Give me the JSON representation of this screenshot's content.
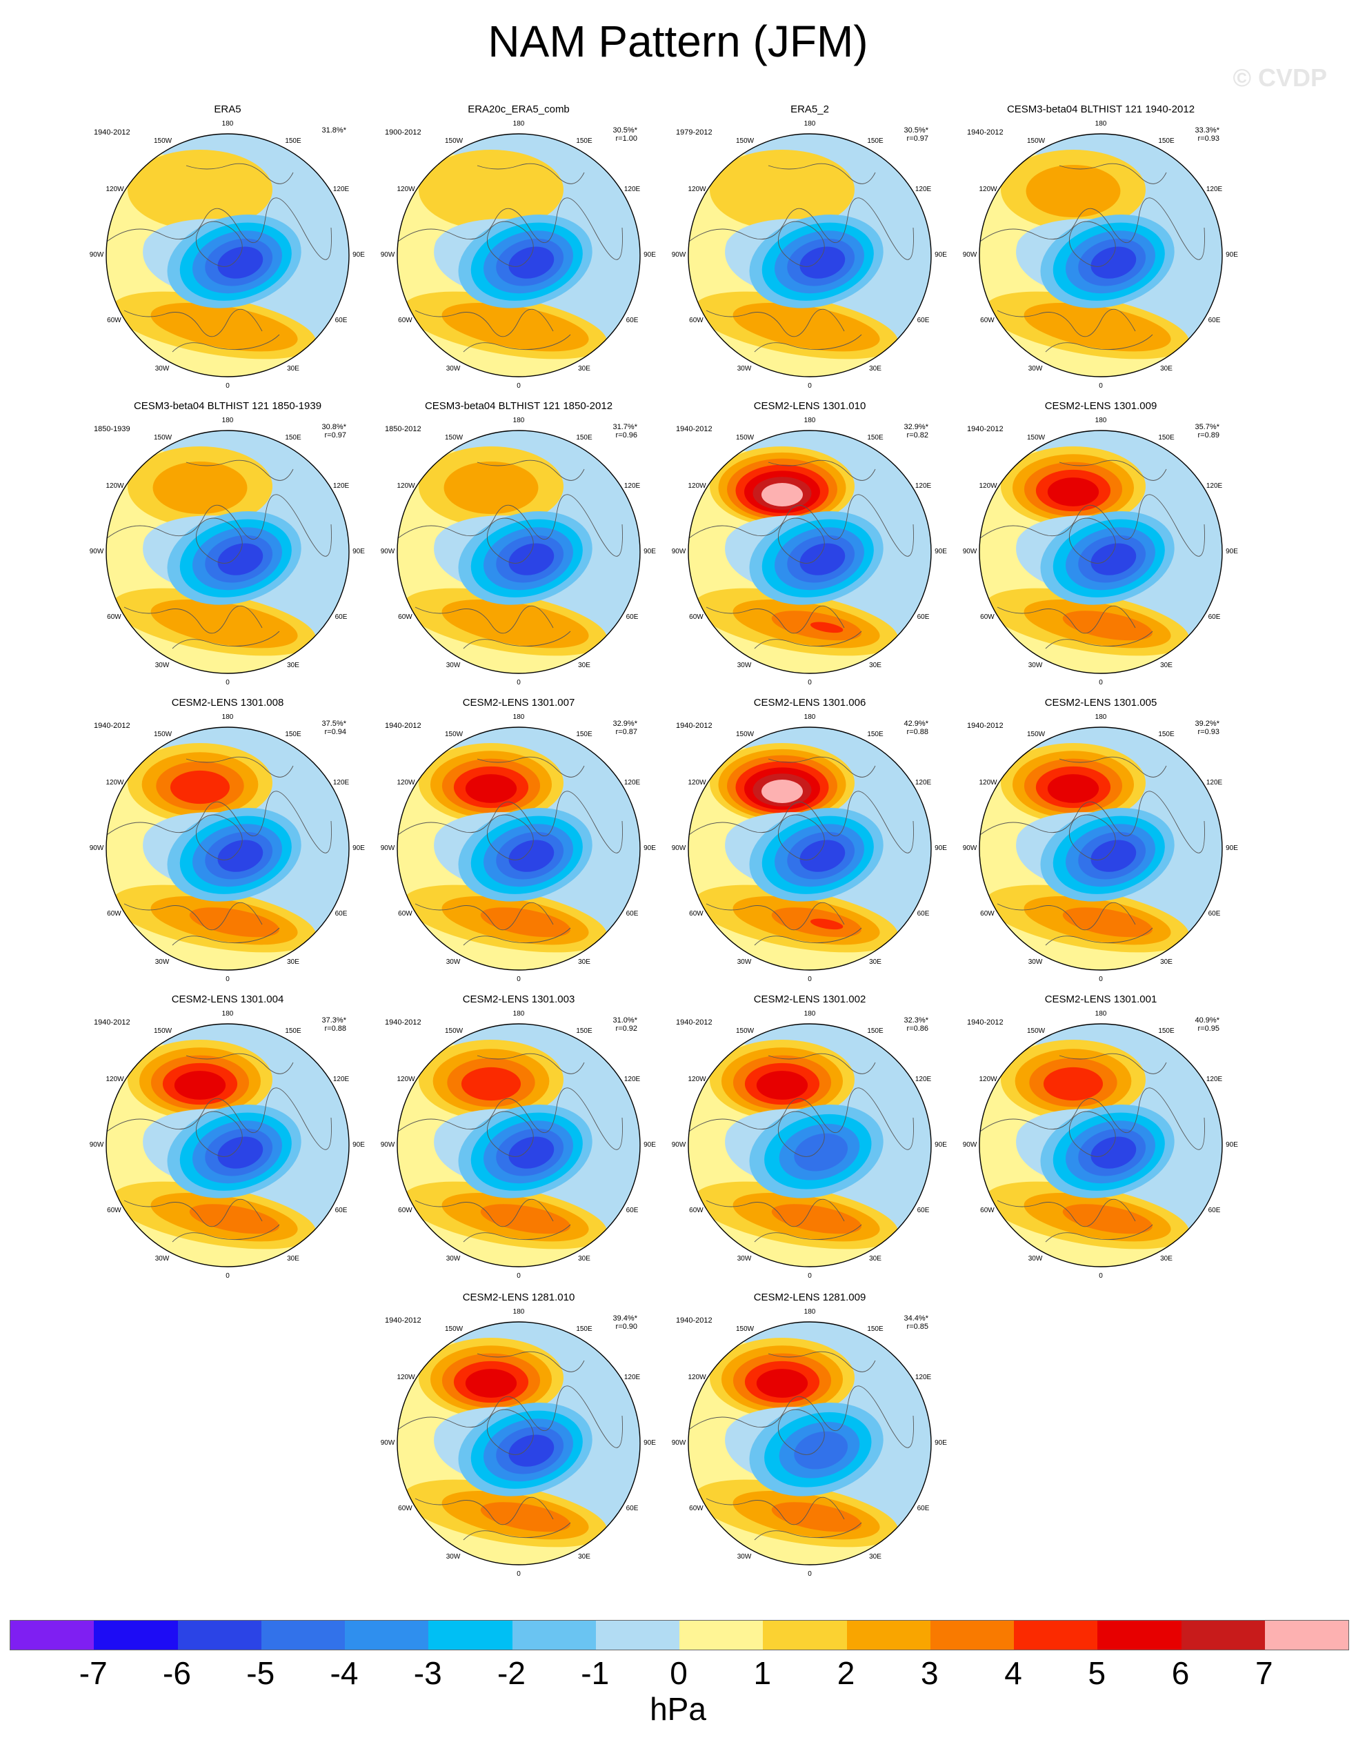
{
  "figure": {
    "title": "NAM Pattern (JFM)",
    "watermark": "© CVDP",
    "units": "hPa",
    "longitude_labels": [
      "180",
      "150E",
      "120E",
      "90E",
      "60E",
      "30E",
      "0",
      "30W",
      "60W",
      "90W",
      "120W",
      "150W"
    ]
  },
  "colorbar": {
    "ticks": [
      "-7",
      "-6",
      "-5",
      "-4",
      "-3",
      "-2",
      "-1",
      "0",
      "1",
      "2",
      "3",
      "4",
      "5",
      "6",
      "7"
    ],
    "colors": [
      "#7f1ff2",
      "#1d0cf5",
      "#2b44e6",
      "#3272ea",
      "#2f8fee",
      "#00bff4",
      "#6ac4f2",
      "#b2dcf3",
      "#fff595",
      "#fbd232",
      "#f9a500",
      "#f97a00",
      "#fb2a00",
      "#e70000",
      "#c81b1b",
      "#fdb1b1"
    ]
  },
  "panels": [
    {
      "title": "ERA5",
      "years": "1940-2012",
      "pct": "31.8%*",
      "r": "",
      "ridge": 1.6,
      "trough": 5.2
    },
    {
      "title": "ERA20c_ERA5_comb",
      "years": "1900-2012",
      "pct": "30.5%*",
      "r": "r=1.00",
      "ridge": 1.5,
      "trough": 5.0
    },
    {
      "title": "ERA5_2",
      "years": "1979-2012",
      "pct": "30.5%*",
      "r": "r=0.97",
      "ridge": 1.7,
      "trough": 5.1
    },
    {
      "title": "CESM3-beta04 BLTHIST 121 1940-2012",
      "years": "1940-2012",
      "pct": "33.3%*",
      "r": "r=0.93",
      "ridge": 2.8,
      "trough": 5.6
    },
    {
      "title": "CESM3-beta04 BLTHIST 121 1850-1939",
      "years": "1850-1939",
      "pct": "30.8%*",
      "r": "r=0.97",
      "ridge": 2.0,
      "trough": 5.3
    },
    {
      "title": "CESM3-beta04 BLTHIST 121 1850-2012",
      "years": "1850-2012",
      "pct": "31.7%*",
      "r": "r=0.96",
      "ridge": 2.3,
      "trough": 5.4
    },
    {
      "title": "CESM2-LENS 1301.010",
      "years": "1940-2012",
      "pct": "32.9%*",
      "r": "r=0.82",
      "ridge": 7.0,
      "trough": 5.0
    },
    {
      "title": "CESM2-LENS 1301.009",
      "years": "1940-2012",
      "pct": "35.7%*",
      "r": "r=0.89",
      "ridge": 5.4,
      "trough": 5.0
    },
    {
      "title": "CESM2-LENS 1301.008",
      "years": "1940-2012",
      "pct": "37.5%*",
      "r": "r=0.94",
      "ridge": 4.6,
      "trough": 5.4
    },
    {
      "title": "CESM2-LENS 1301.007",
      "years": "1940-2012",
      "pct": "32.9%*",
      "r": "r=0.87",
      "ridge": 5.2,
      "trough": 5.0
    },
    {
      "title": "CESM2-LENS 1301.006",
      "years": "1940-2012",
      "pct": "42.9%*",
      "r": "r=0.88",
      "ridge": 7.0,
      "trough": 5.2
    },
    {
      "title": "CESM2-LENS 1301.005",
      "years": "1940-2012",
      "pct": "39.2%*",
      "r": "r=0.93",
      "ridge": 5.0,
      "trough": 5.0
    },
    {
      "title": "CESM2-LENS 1301.004",
      "years": "1940-2012",
      "pct": "37.3%*",
      "r": "r=0.88",
      "ridge": 5.0,
      "trough": 5.3
    },
    {
      "title": "CESM2-LENS 1301.003",
      "years": "1940-2012",
      "pct": "31.0%*",
      "r": "r=0.92",
      "ridge": 4.2,
      "trough": 5.0
    },
    {
      "title": "CESM2-LENS 1301.002",
      "years": "1940-2012",
      "pct": "32.3%*",
      "r": "r=0.86",
      "ridge": 5.2,
      "trough": 4.8
    },
    {
      "title": "CESM2-LENS 1301.001",
      "years": "1940-2012",
      "pct": "40.9%*",
      "r": "r=0.95",
      "ridge": 4.8,
      "trough": 5.8
    },
    {
      "title": "CESM2-LENS 1281.010",
      "years": "1940-2012",
      "pct": "39.4%*",
      "r": "r=0.90",
      "ridge": 5.2,
      "trough": 5.3
    },
    {
      "title": "CESM2-LENS 1281.009",
      "years": "1940-2012",
      "pct": "34.4%*",
      "r": "r=0.85",
      "ridge": 5.0,
      "trough": 4.8
    }
  ]
}
